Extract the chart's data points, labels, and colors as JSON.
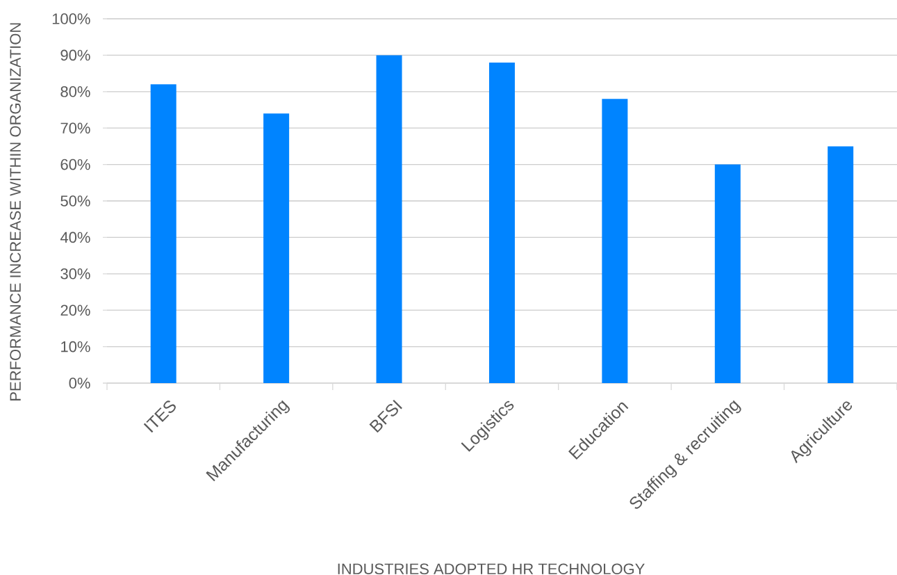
{
  "chart_data": {
    "type": "bar",
    "xlabel": "INDUSTRIES ADOPTED HR TECHNOLOGY",
    "ylabel": "PERFORMANCE INCREASE WITHIN ORGANIZATION",
    "categories": [
      "ITES",
      "Manufacturing",
      "BFSI",
      "Logistics",
      "Education",
      "Staffing & recruiting",
      "Agriculture"
    ],
    "values": [
      82,
      74,
      90,
      88,
      78,
      60,
      65
    ],
    "color": "#0084ff",
    "ylim": [
      0,
      100
    ],
    "yticks": [
      {
        "value": 0,
        "label": "0%"
      },
      {
        "value": 10,
        "label": "10%"
      },
      {
        "value": 20,
        "label": "20%"
      },
      {
        "value": 30,
        "label": "30%"
      },
      {
        "value": 40,
        "label": "40%"
      },
      {
        "value": 50,
        "label": "50%"
      },
      {
        "value": 60,
        "label": "60%"
      },
      {
        "value": 70,
        "label": "70%"
      },
      {
        "value": 80,
        "label": "80%"
      },
      {
        "value": 90,
        "label": "90%"
      },
      {
        "value": 100,
        "label": "100%"
      }
    ],
    "grid": "y"
  }
}
